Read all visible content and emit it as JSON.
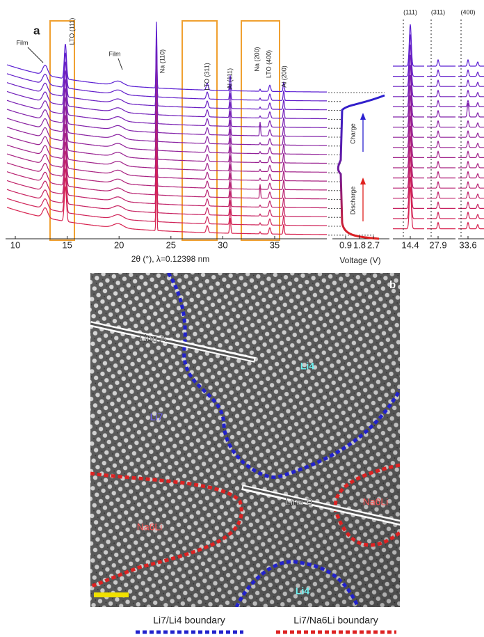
{
  "panel_a": {
    "label": "a",
    "x_axis": {
      "ticks": [
        10,
        15,
        20,
        25,
        30,
        35
      ],
      "title": "2θ (°), λ=0.12398 nm"
    },
    "voltage_axis": {
      "ticks": [
        0.9,
        1.8,
        2.7
      ],
      "title": "Voltage (V)"
    },
    "peak_annotations": [
      "Film",
      "LTO (111)",
      "Film",
      "Na (110)",
      "LTO (311)",
      "Al (111)",
      "Na (200)",
      "LTO (400)",
      "Al (200)"
    ],
    "process_labels": [
      "Charge",
      "Discharge"
    ],
    "zoom_panels": [
      {
        "reflection": "(111)",
        "tick": 14.4
      },
      {
        "reflection": "(311)",
        "tick": 27.9
      },
      {
        "reflection": "(400)",
        "tick": 33.6
      }
    ]
  },
  "panel_b": {
    "label": "b",
    "line_labels": [
      "Line A",
      "Line B"
    ],
    "phase_labels": [
      "Li4",
      "Li7",
      "Na6Li",
      "Na6Li",
      "Li4"
    ],
    "legend": [
      "Li7/Li4 boundary",
      "Li7/Na6Li boundary"
    ]
  }
}
